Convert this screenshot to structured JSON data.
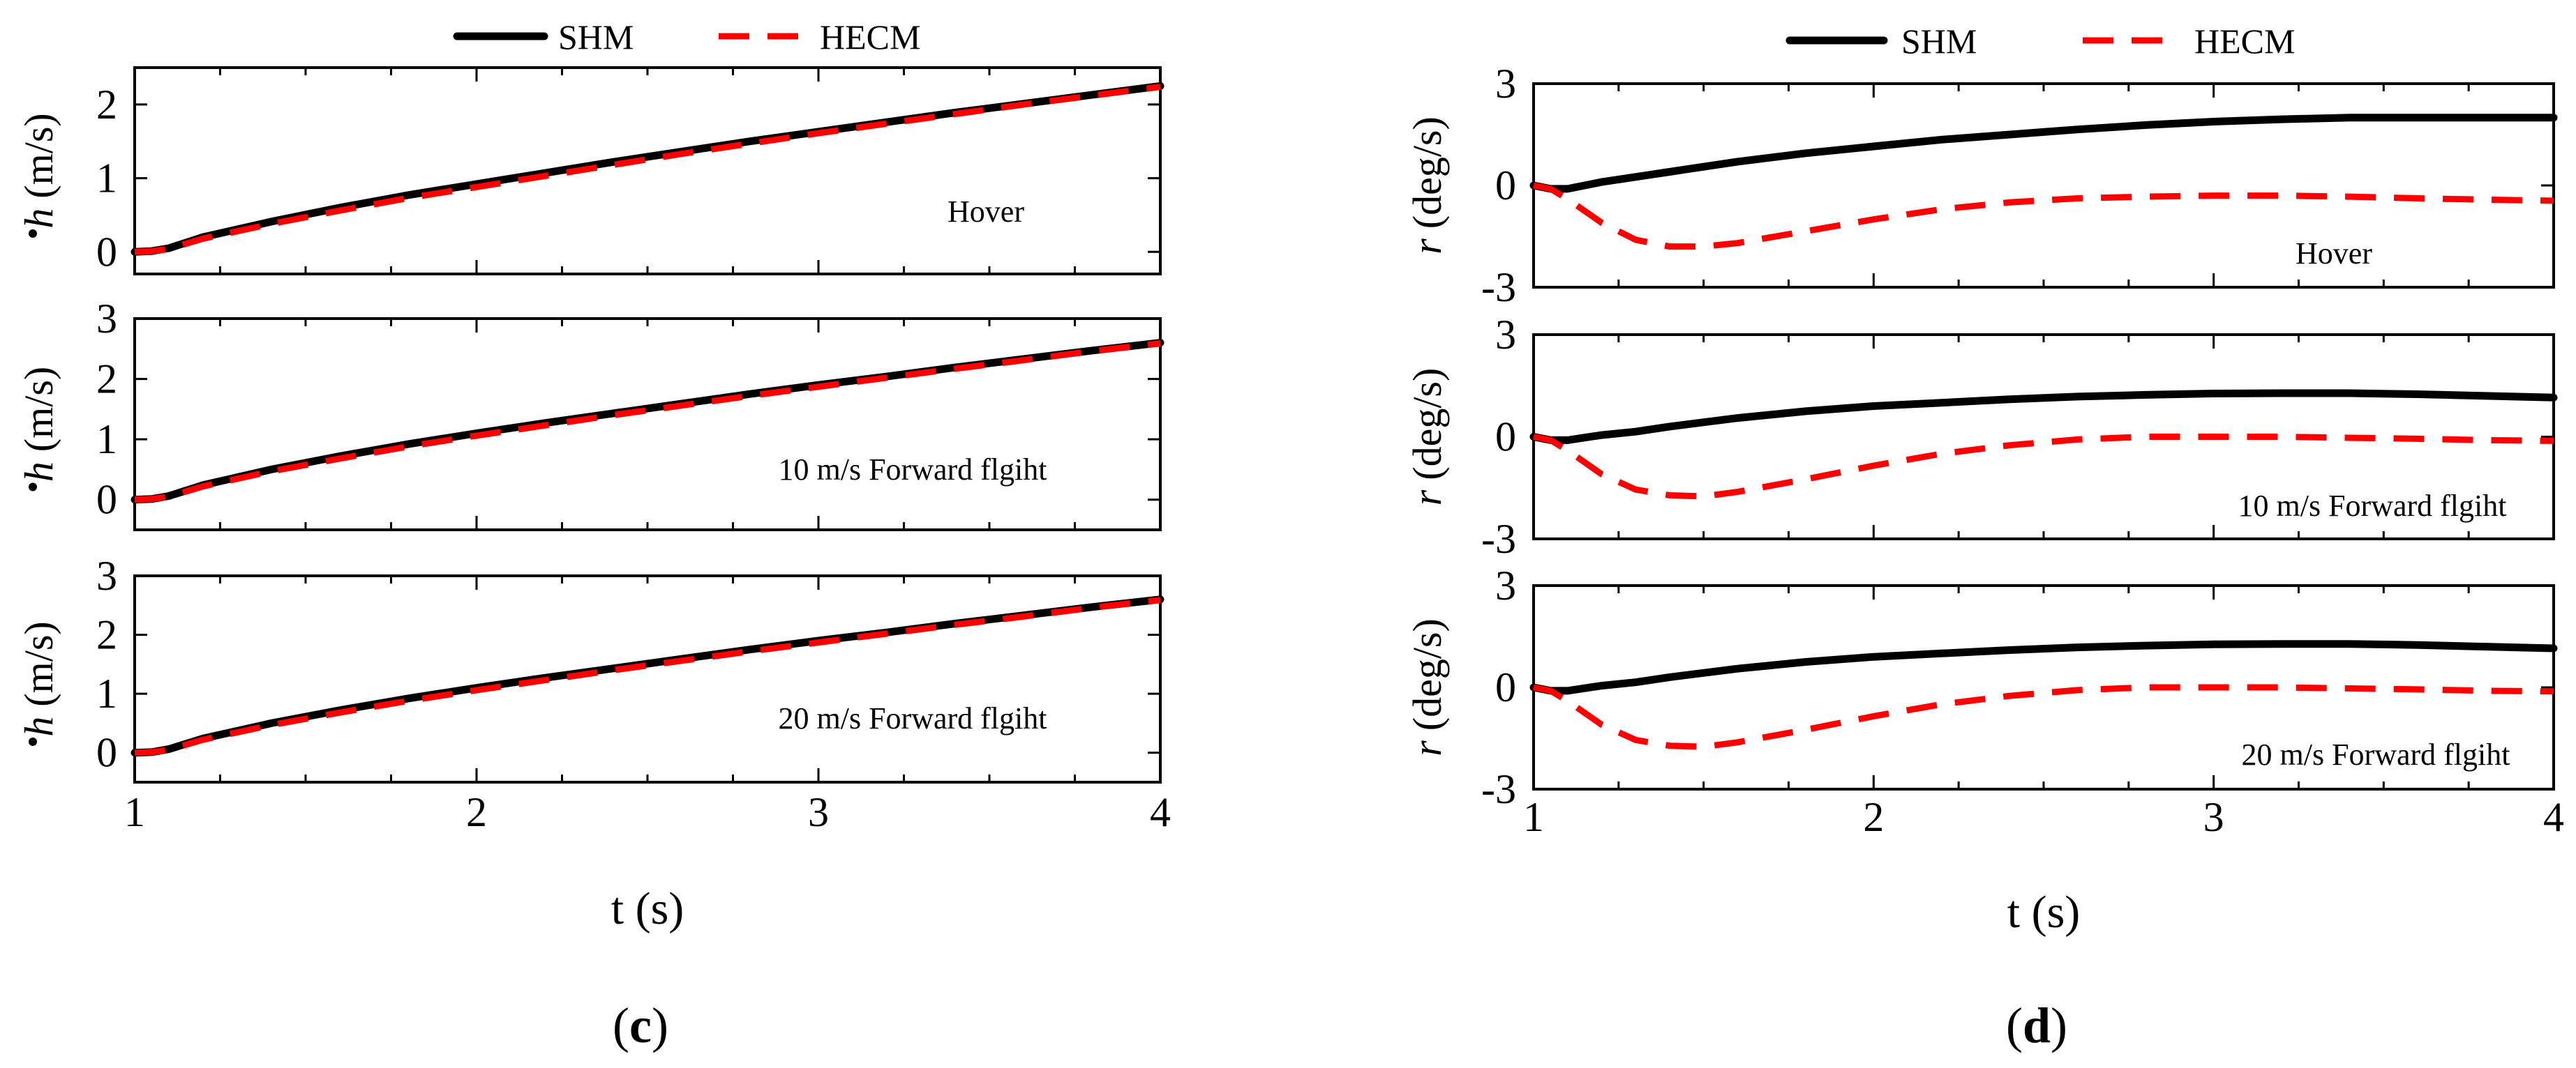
{
  "legend": {
    "entries": [
      {
        "name": "SHM",
        "color": "#000000",
        "style": "solid"
      },
      {
        "name": "HECM",
        "color": "#ff0000",
        "style": "dashed"
      }
    ]
  },
  "chart_data": [
    {
      "type": "line",
      "panel_letter": "c",
      "xlabel": "t (s)",
      "xlim": [
        1,
        4
      ],
      "xticks": [
        1,
        2,
        3,
        4
      ],
      "subplots": [
        {
          "annotation": "Hover",
          "ylabel_symbol": "h",
          "ylabel_unit": "(m/s)",
          "ylim": [
            -0.3,
            2.5
          ],
          "yticks": [
            0,
            1,
            2
          ],
          "series": [
            {
              "name": "SHM",
              "x": [
                1.0,
                1.05,
                1.1,
                1.2,
                1.4,
                1.6,
                1.8,
                2.0,
                2.2,
                2.4,
                2.6,
                2.8,
                3.0,
                3.2,
                3.4,
                3.6,
                3.8,
                4.0
              ],
              "values": [
                0.0,
                0.01,
                0.05,
                0.2,
                0.41,
                0.6,
                0.77,
                0.92,
                1.07,
                1.22,
                1.36,
                1.5,
                1.63,
                1.76,
                1.89,
                2.01,
                2.13,
                2.25
              ]
            },
            {
              "name": "HECM",
              "x": [
                1.0,
                1.05,
                1.1,
                1.2,
                1.4,
                1.6,
                1.8,
                2.0,
                2.2,
                2.4,
                2.6,
                2.8,
                3.0,
                3.2,
                3.4,
                3.6,
                3.8,
                4.0
              ],
              "values": [
                0.0,
                0.01,
                0.04,
                0.18,
                0.38,
                0.56,
                0.73,
                0.88,
                1.03,
                1.18,
                1.33,
                1.47,
                1.61,
                1.74,
                1.87,
                2.0,
                2.12,
                2.24
              ]
            }
          ]
        },
        {
          "annotation": "10 m/s Forward flgiht",
          "ylabel_symbol": "h",
          "ylabel_unit": "(m/s)",
          "ylim": [
            -0.5,
            3.0
          ],
          "yticks": [
            0,
            1,
            2,
            3
          ],
          "series": [
            {
              "name": "SHM",
              "x": [
                1.0,
                1.05,
                1.1,
                1.2,
                1.4,
                1.6,
                1.8,
                2.0,
                2.2,
                2.4,
                2.6,
                2.8,
                3.0,
                3.2,
                3.4,
                3.6,
                3.8,
                4.0
              ],
              "values": [
                0.0,
                0.01,
                0.06,
                0.24,
                0.5,
                0.72,
                0.92,
                1.1,
                1.27,
                1.43,
                1.59,
                1.75,
                1.9,
                2.04,
                2.19,
                2.33,
                2.47,
                2.6
              ]
            },
            {
              "name": "HECM",
              "x": [
                1.0,
                1.05,
                1.1,
                1.2,
                1.4,
                1.6,
                1.8,
                2.0,
                2.2,
                2.4,
                2.6,
                2.8,
                3.0,
                3.2,
                3.4,
                3.6,
                3.8,
                4.0
              ],
              "values": [
                0.0,
                0.01,
                0.05,
                0.22,
                0.47,
                0.68,
                0.88,
                1.06,
                1.23,
                1.4,
                1.56,
                1.72,
                1.87,
                2.02,
                2.17,
                2.31,
                2.46,
                2.59
              ]
            }
          ]
        },
        {
          "annotation": "20 m/s Forward flgiht",
          "ylabel_symbol": "h",
          "ylabel_unit": "(m/s)",
          "ylim": [
            -0.5,
            3.0
          ],
          "yticks": [
            0,
            1,
            2,
            3
          ],
          "series": [
            {
              "name": "SHM",
              "x": [
                1.0,
                1.05,
                1.1,
                1.2,
                1.4,
                1.6,
                1.8,
                2.0,
                2.2,
                2.4,
                2.6,
                2.8,
                3.0,
                3.2,
                3.4,
                3.6,
                3.8,
                4.0
              ],
              "values": [
                0.0,
                0.01,
                0.06,
                0.24,
                0.5,
                0.72,
                0.92,
                1.1,
                1.27,
                1.43,
                1.59,
                1.75,
                1.9,
                2.04,
                2.19,
                2.33,
                2.47,
                2.6
              ]
            },
            {
              "name": "HECM",
              "x": [
                1.0,
                1.05,
                1.1,
                1.2,
                1.4,
                1.6,
                1.8,
                2.0,
                2.2,
                2.4,
                2.6,
                2.8,
                3.0,
                3.2,
                3.4,
                3.6,
                3.8,
                4.0
              ],
              "values": [
                0.0,
                0.01,
                0.05,
                0.22,
                0.47,
                0.68,
                0.88,
                1.06,
                1.23,
                1.4,
                1.56,
                1.72,
                1.87,
                2.02,
                2.17,
                2.31,
                2.46,
                2.59
              ]
            }
          ]
        }
      ]
    },
    {
      "type": "line",
      "panel_letter": "d",
      "xlabel": "t (s)",
      "xlim": [
        1,
        4
      ],
      "xticks": [
        1,
        2,
        3,
        4
      ],
      "subplots": [
        {
          "annotation": "Hover",
          "ylabel_symbol": "r",
          "ylabel_unit": "(deg/s)",
          "ylim": [
            -3,
            3
          ],
          "yticks": [
            3,
            0,
            -3
          ],
          "series": [
            {
              "name": "SHM",
              "x": [
                1.0,
                1.05,
                1.1,
                1.2,
                1.3,
                1.4,
                1.6,
                1.8,
                2.0,
                2.2,
                2.4,
                2.6,
                2.8,
                3.0,
                3.2,
                3.4,
                3.6,
                3.8,
                4.0
              ],
              "values": [
                0.0,
                -0.1,
                -0.1,
                0.1,
                0.25,
                0.4,
                0.7,
                0.95,
                1.15,
                1.35,
                1.5,
                1.65,
                1.78,
                1.88,
                1.95,
                2.0,
                2.0,
                2.0,
                2.0
              ]
            },
            {
              "name": "HECM",
              "x": [
                1.0,
                1.05,
                1.1,
                1.2,
                1.3,
                1.4,
                1.5,
                1.6,
                1.8,
                2.0,
                2.2,
                2.4,
                2.6,
                2.8,
                3.0,
                3.2,
                3.4,
                3.6,
                3.8,
                4.0
              ],
              "values": [
                0.0,
                -0.1,
                -0.4,
                -1.1,
                -1.6,
                -1.8,
                -1.8,
                -1.7,
                -1.35,
                -1.0,
                -0.7,
                -0.5,
                -0.38,
                -0.33,
                -0.3,
                -0.3,
                -0.33,
                -0.38,
                -0.42,
                -0.45
              ]
            }
          ]
        },
        {
          "annotation": "10 m/s Forward flgiht",
          "ylabel_symbol": "r",
          "ylabel_unit": "(deg/s)",
          "ylim": [
            -3,
            3
          ],
          "yticks": [
            3,
            0,
            -3
          ],
          "series": [
            {
              "name": "SHM",
              "x": [
                1.0,
                1.05,
                1.1,
                1.2,
                1.3,
                1.4,
                1.6,
                1.8,
                2.0,
                2.2,
                2.4,
                2.6,
                2.8,
                3.0,
                3.2,
                3.4,
                3.6,
                3.8,
                4.0
              ],
              "values": [
                0.0,
                -0.1,
                -0.1,
                0.05,
                0.15,
                0.3,
                0.55,
                0.75,
                0.9,
                1.0,
                1.1,
                1.18,
                1.23,
                1.27,
                1.28,
                1.28,
                1.25,
                1.2,
                1.15
              ]
            },
            {
              "name": "HECM",
              "x": [
                1.0,
                1.05,
                1.1,
                1.2,
                1.3,
                1.4,
                1.5,
                1.6,
                1.8,
                2.0,
                2.2,
                2.4,
                2.6,
                2.8,
                3.0,
                3.2,
                3.4,
                3.6,
                3.8,
                4.0
              ],
              "values": [
                0.0,
                -0.1,
                -0.4,
                -1.1,
                -1.55,
                -1.72,
                -1.75,
                -1.62,
                -1.25,
                -0.85,
                -0.5,
                -0.25,
                -0.08,
                0.0,
                0.0,
                0.0,
                -0.03,
                -0.06,
                -0.1,
                -0.12
              ]
            }
          ]
        },
        {
          "annotation": "20 m/s Forward flgiht",
          "ylabel_symbol": "r",
          "ylabel_unit": "(deg/s)",
          "ylim": [
            -3,
            3
          ],
          "yticks": [
            3,
            0,
            -3
          ],
          "series": [
            {
              "name": "SHM",
              "x": [
                1.0,
                1.05,
                1.1,
                1.2,
                1.3,
                1.4,
                1.6,
                1.8,
                2.0,
                2.2,
                2.4,
                2.6,
                2.8,
                3.0,
                3.2,
                3.4,
                3.6,
                3.8,
                4.0
              ],
              "values": [
                0.0,
                -0.1,
                -0.1,
                0.05,
                0.15,
                0.3,
                0.55,
                0.75,
                0.9,
                1.0,
                1.1,
                1.18,
                1.23,
                1.27,
                1.28,
                1.28,
                1.25,
                1.2,
                1.15
              ]
            },
            {
              "name": "HECM",
              "x": [
                1.0,
                1.05,
                1.1,
                1.2,
                1.3,
                1.4,
                1.5,
                1.6,
                1.8,
                2.0,
                2.2,
                2.4,
                2.6,
                2.8,
                3.0,
                3.2,
                3.4,
                3.6,
                3.8,
                4.0
              ],
              "values": [
                0.0,
                -0.1,
                -0.4,
                -1.1,
                -1.55,
                -1.72,
                -1.75,
                -1.62,
                -1.25,
                -0.85,
                -0.5,
                -0.25,
                -0.08,
                0.0,
                0.0,
                0.0,
                -0.03,
                -0.06,
                -0.1,
                -0.12
              ]
            }
          ]
        }
      ]
    }
  ]
}
